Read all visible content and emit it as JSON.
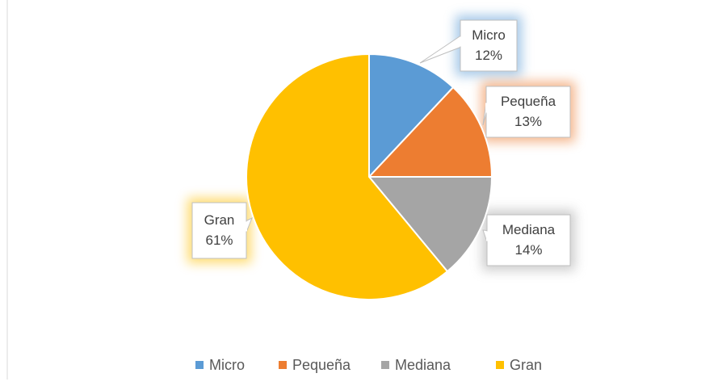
{
  "chart_data": {
    "type": "pie",
    "categories": [
      "Micro",
      "Pequeña",
      "Mediana",
      "Gran"
    ],
    "values": [
      12,
      13,
      14,
      61
    ],
    "value_labels": [
      "12%",
      "13%",
      "14%",
      "61%"
    ],
    "colors": [
      "#5b9bd5",
      "#ed7d31",
      "#a5a5a5",
      "#ffc000"
    ],
    "legend": "bottom"
  }
}
